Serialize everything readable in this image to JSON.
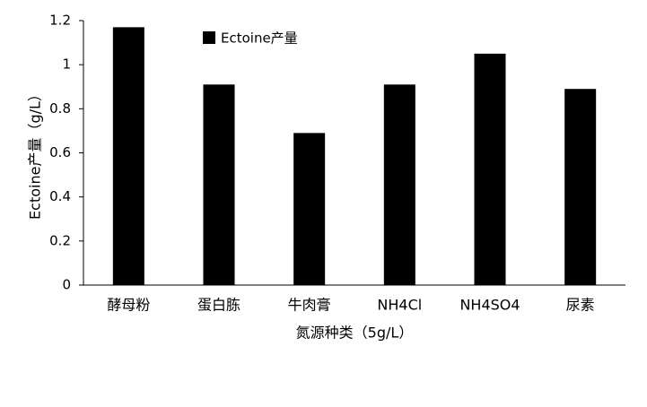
{
  "chart_data": {
    "type": "bar",
    "title": null,
    "categories": [
      "酵母粉",
      "蛋白胨",
      "牛肉膏",
      "NH4Cl",
      "NH4SO4",
      "尿素"
    ],
    "series": [
      {
        "name": "Ectoine产量",
        "color": "#000000",
        "values": [
          1.17,
          0.91,
          0.69,
          0.91,
          1.05,
          0.89
        ]
      }
    ],
    "xlabel": "氮源种类（5g/L）",
    "ylabel": "Ectoine产量（g/L）",
    "ylim": [
      0,
      1.2
    ],
    "yticks": [
      0,
      0.2,
      0.4,
      0.6,
      0.8,
      1,
      1.2
    ],
    "grid": false,
    "legend": "top"
  }
}
